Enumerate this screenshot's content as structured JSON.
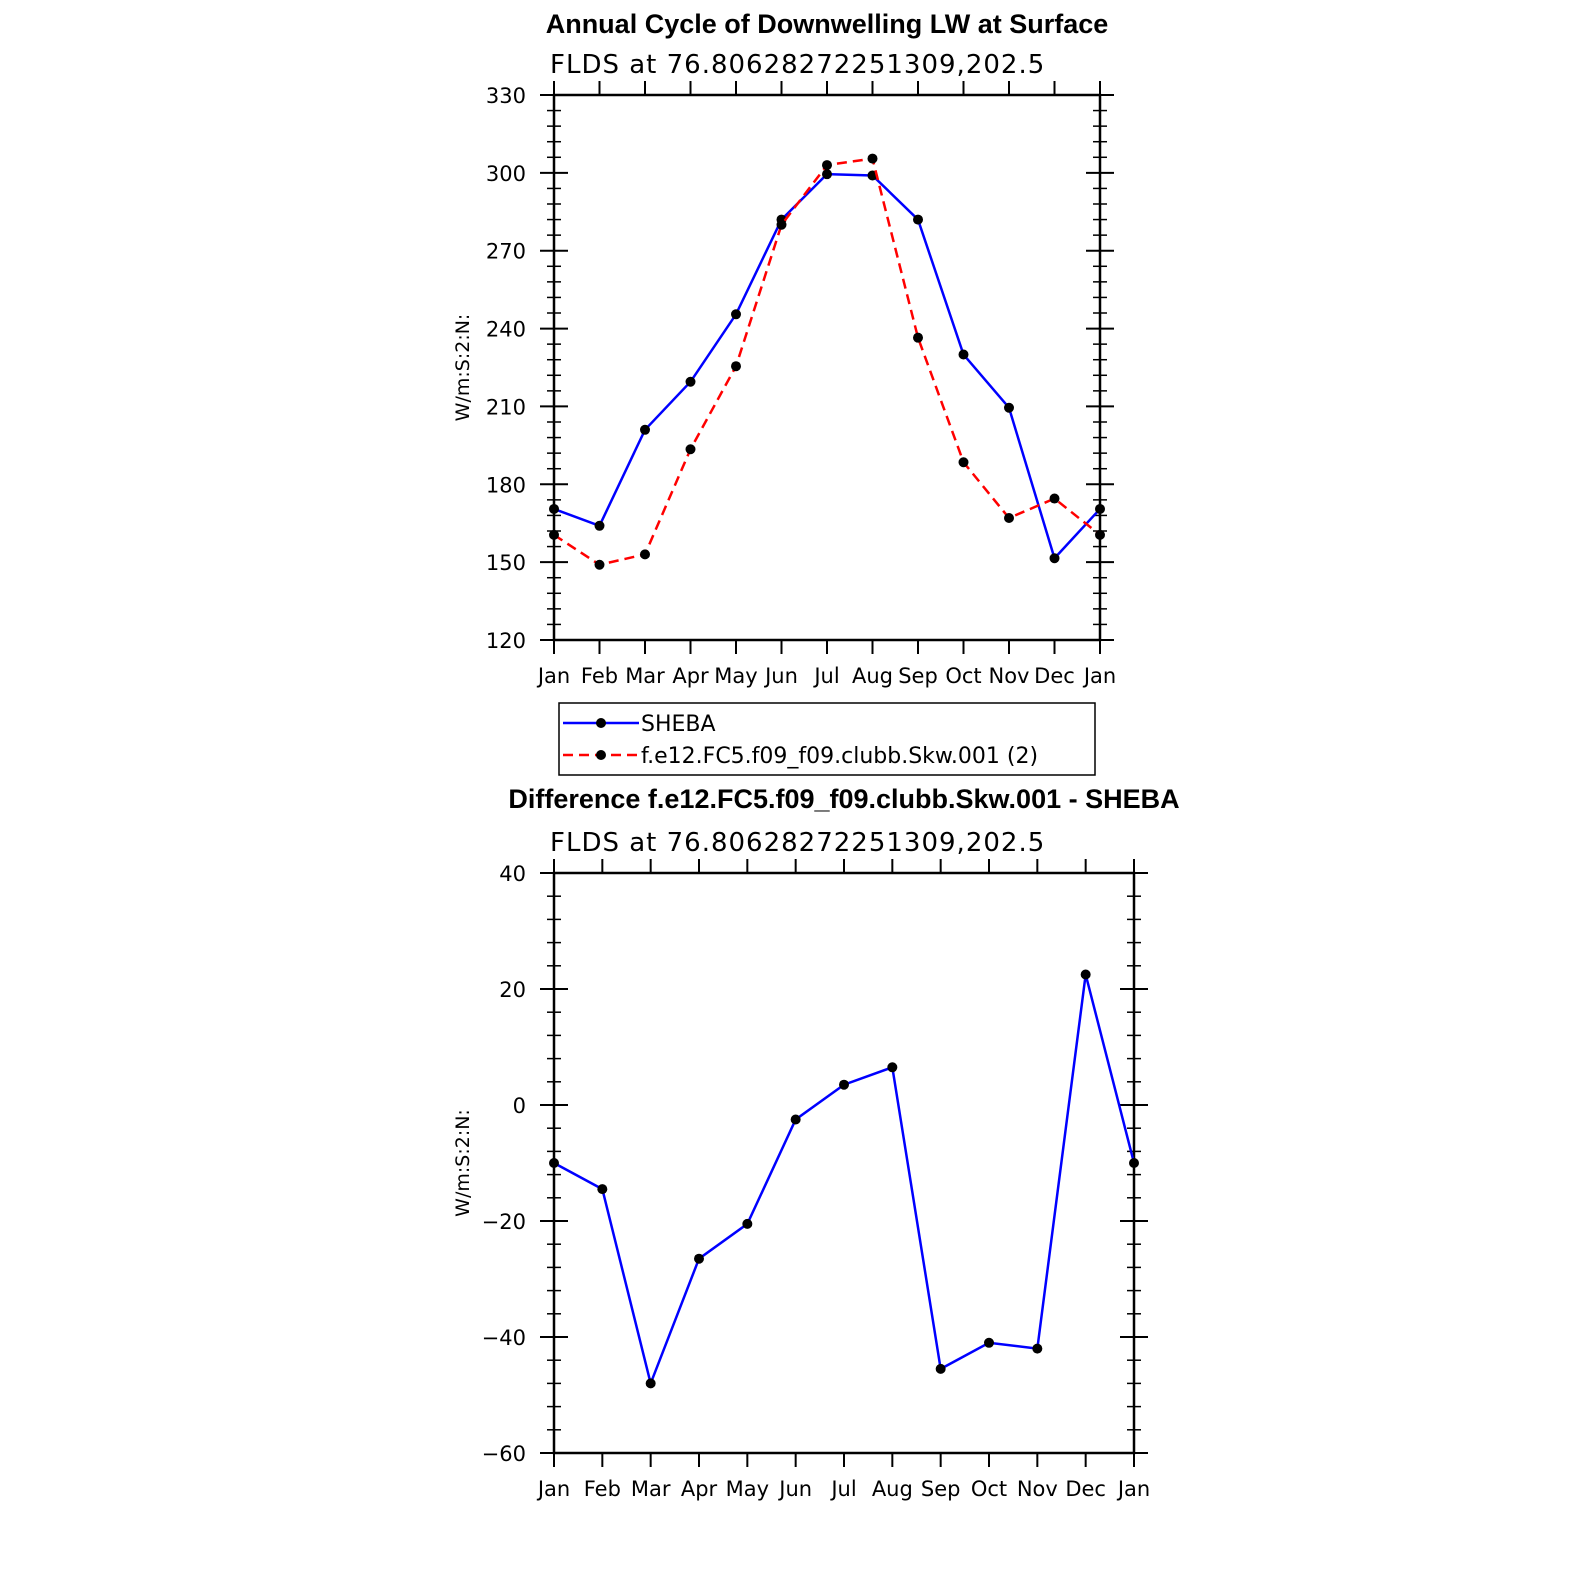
{
  "chart_data": [
    {
      "type": "line",
      "title": "Annual Cycle of Downwelling LW at Surface",
      "subtitle": "FLDS at 76.80628272251309,202.5",
      "xlabel": "",
      "ylabel": "W/m:S:2:N:",
      "categories": [
        "Jan",
        "Feb",
        "Mar",
        "Apr",
        "May",
        "Jun",
        "Jul",
        "Aug",
        "Sep",
        "Oct",
        "Nov",
        "Dec",
        "Jan"
      ],
      "ylim": [
        120,
        330
      ],
      "yticks": [
        120,
        150,
        180,
        210,
        240,
        270,
        300,
        330
      ],
      "legend_position": "bottom",
      "series": [
        {
          "name": "SHEBA",
          "color": "#0000ff",
          "dash": "solid",
          "values": [
            170.5,
            164,
            201,
            219.5,
            245.5,
            282,
            299.5,
            299,
            282,
            230,
            209.5,
            151.5,
            170.5
          ]
        },
        {
          "name": "f.e12.FC5.f09_f09.clubb.Skw.001 (2)",
          "color": "#ff0000",
          "dash": "dashed",
          "values": [
            160.5,
            149,
            153,
            193.5,
            225.5,
            280,
            303,
            305.5,
            236.5,
            188.5,
            167,
            174.5,
            160.5
          ]
        }
      ]
    },
    {
      "type": "line",
      "title": "Difference f.e12.FC5.f09_f09.clubb.Skw.001 - SHEBA",
      "subtitle": "FLDS at 76.80628272251309,202.5",
      "xlabel": "",
      "ylabel": "W/m:S:2:N:",
      "categories": [
        "Jan",
        "Feb",
        "Mar",
        "Apr",
        "May",
        "Jun",
        "Jul",
        "Aug",
        "Sep",
        "Oct",
        "Nov",
        "Dec",
        "Jan"
      ],
      "ylim": [
        -60,
        40
      ],
      "yticks": [
        -60,
        -40,
        -20,
        0,
        20,
        40
      ],
      "ytick_labels": [
        "−60",
        "−40",
        "−20",
        "0",
        "20",
        "40"
      ],
      "series": [
        {
          "color": "#0000ff",
          "dash": "solid",
          "values": [
            -10,
            -14.5,
            -48,
            -26.5,
            -20.5,
            -2.5,
            3.5,
            6.5,
            -45.5,
            -41,
            -42,
            22.5,
            -10
          ]
        }
      ]
    }
  ]
}
